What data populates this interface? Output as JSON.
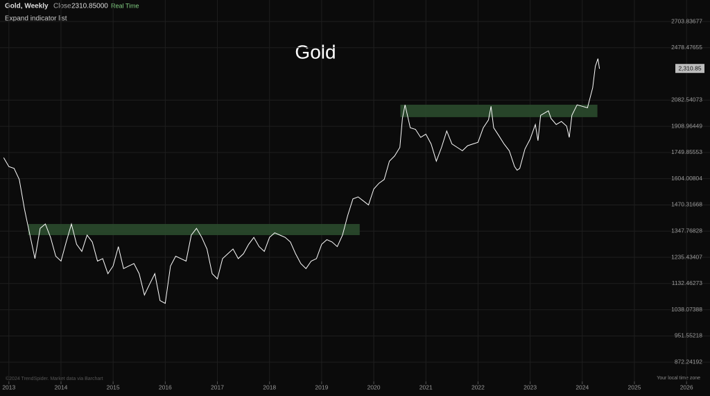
{
  "header": {
    "symbol": "Gold, Weekly",
    "close_label": "Close",
    "close": "2310.85000",
    "status": "Real Time",
    "indicator_toggle": "Expand indicator list"
  },
  "footer": {
    "credit": "©2024 TrendSpider. Market data via Barchart",
    "timezone": "Your local time zone"
  },
  "chart_data": {
    "type": "line",
    "title": "Gold",
    "color": "#ffffff",
    "log_y": true,
    "grid": true,
    "xlim": [
      2012.83,
      2026.45
    ],
    "ylim": [
      818,
      2904
    ],
    "xticks": [
      2013,
      2014,
      2015,
      2016,
      2017,
      2018,
      2019,
      2020,
      2021,
      2022,
      2023,
      2024,
      2025,
      2026
    ],
    "yticks": [
      872.24192,
      951.55218,
      1038.07388,
      1132.46273,
      1235.43407,
      1347.76828,
      1470.31668,
      1604.00804,
      1749.85553,
      1908.96449,
      2082.54073,
      2478.47655,
      2703.83677
    ],
    "last_price": {
      "value": 2310.85,
      "label": "2,310.85"
    },
    "bands": [
      {
        "x": [
          2013.37,
          2019.73
        ],
        "y": [
          1330,
          1380
        ],
        "color": "#2a4a2c"
      },
      {
        "x": [
          2020.51,
          2024.29
        ],
        "y": [
          1968,
          2051
        ],
        "color": "#2a4a2c"
      }
    ],
    "x": [
      2012.9,
      2013.0,
      2013.1,
      2013.2,
      2013.3,
      2013.35,
      2013.5,
      2013.6,
      2013.7,
      2013.8,
      2013.9,
      2014.0,
      2014.1,
      2014.2,
      2014.3,
      2014.4,
      2014.5,
      2014.6,
      2014.7,
      2014.8,
      2014.9,
      2015.0,
      2015.1,
      2015.2,
      2015.3,
      2015.4,
      2015.5,
      2015.6,
      2015.7,
      2015.8,
      2015.9,
      2016.0,
      2016.1,
      2016.2,
      2016.3,
      2016.4,
      2016.5,
      2016.6,
      2016.7,
      2016.8,
      2016.9,
      2017.0,
      2017.1,
      2017.2,
      2017.3,
      2017.4,
      2017.5,
      2017.6,
      2017.7,
      2017.8,
      2017.9,
      2018.0,
      2018.1,
      2018.2,
      2018.3,
      2018.4,
      2018.5,
      2018.6,
      2018.7,
      2018.8,
      2018.9,
      2019.0,
      2019.1,
      2019.2,
      2019.3,
      2019.4,
      2019.5,
      2019.6,
      2019.7,
      2019.8,
      2019.9,
      2020.0,
      2020.1,
      2020.2,
      2020.3,
      2020.4,
      2020.5,
      2020.55,
      2020.6,
      2020.7,
      2020.8,
      2020.9,
      2021.0,
      2021.1,
      2021.2,
      2021.3,
      2021.4,
      2021.5,
      2021.6,
      2021.7,
      2021.8,
      2021.9,
      2022.0,
      2022.1,
      2022.2,
      2022.25,
      2022.3,
      2022.4,
      2022.5,
      2022.6,
      2022.7,
      2022.75,
      2022.8,
      2022.9,
      2023.0,
      2023.1,
      2023.15,
      2023.2,
      2023.3,
      2023.35,
      2023.4,
      2023.5,
      2023.6,
      2023.7,
      2023.75,
      2023.8,
      2023.9,
      2024.0,
      2024.1,
      2024.2,
      2024.25,
      2024.3,
      2024.33
    ],
    "values": [
      1720,
      1670,
      1660,
      1600,
      1450,
      1390,
      1230,
      1360,
      1380,
      1320,
      1240,
      1220,
      1300,
      1380,
      1290,
      1260,
      1330,
      1300,
      1220,
      1230,
      1170,
      1200,
      1280,
      1190,
      1200,
      1210,
      1170,
      1090,
      1130,
      1170,
      1070,
      1060,
      1200,
      1240,
      1230,
      1220,
      1330,
      1360,
      1320,
      1270,
      1170,
      1150,
      1230,
      1250,
      1270,
      1230,
      1250,
      1290,
      1320,
      1280,
      1260,
      1320,
      1340,
      1330,
      1320,
      1300,
      1250,
      1210,
      1190,
      1220,
      1230,
      1290,
      1310,
      1300,
      1280,
      1330,
      1420,
      1500,
      1510,
      1490,
      1470,
      1550,
      1580,
      1600,
      1700,
      1730,
      1780,
      1960,
      2050,
      1900,
      1890,
      1840,
      1860,
      1800,
      1700,
      1780,
      1880,
      1800,
      1780,
      1760,
      1790,
      1800,
      1810,
      1900,
      1950,
      2040,
      1900,
      1850,
      1800,
      1760,
      1670,
      1650,
      1660,
      1770,
      1830,
      1920,
      1820,
      1980,
      2000,
      2010,
      1960,
      1920,
      1940,
      1910,
      1840,
      1980,
      2050,
      2040,
      2030,
      2170,
      2330,
      2390,
      2310.85
    ]
  }
}
